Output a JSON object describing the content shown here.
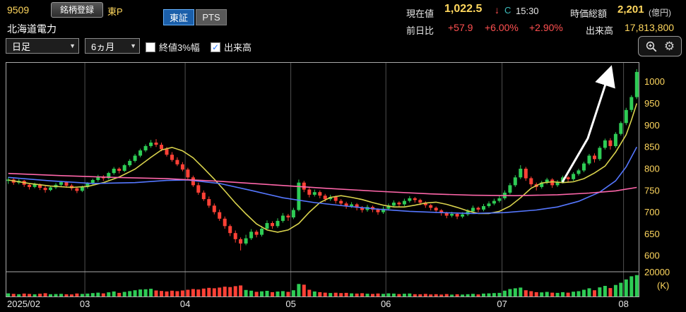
{
  "header": {
    "code": "9509",
    "register_button": "銘柄登録",
    "market_tag": "東P",
    "company": "北海道電力",
    "tabs": [
      {
        "label": "東証",
        "active": true
      },
      {
        "label": "PTS",
        "active": false
      }
    ],
    "price": {
      "label": "現在値",
      "value": "1,022.5",
      "tick": "↓",
      "flag": "C",
      "time": "15:30"
    },
    "market_cap": {
      "label": "時価総額",
      "value": "2,201",
      "unit": "(億円)"
    },
    "change": {
      "label": "前日比",
      "value": "+57.9",
      "pct": "+6.00%",
      "pct2": "+2.90%"
    },
    "volume": {
      "label": "出来高",
      "value": "17,813,800"
    }
  },
  "toolbar": {
    "period_select": "日足",
    "range_select": "6ヵ月",
    "checkbox1": {
      "label": "終値3%幅",
      "checked": false
    },
    "checkbox2": {
      "label": "出来高",
      "checked": true
    }
  },
  "chart_data": {
    "type": "candlestick",
    "title": "北海道電力 9509 日足 6ヵ月",
    "y_ticks": [
      1000,
      950,
      900,
      850,
      800,
      750,
      700,
      650,
      600
    ],
    "price_range": [
      563,
      1045
    ],
    "x_labels": [
      {
        "text": "2025/02",
        "day": 0
      },
      {
        "text": "03",
        "day": 15
      },
      {
        "text": "04",
        "day": 34
      },
      {
        "text": "05",
        "day": 54
      },
      {
        "text": "06",
        "day": 72
      },
      {
        "text": "07",
        "day": 94
      },
      {
        "text": "08",
        "day": 117
      }
    ],
    "month_grid_days": [
      15,
      34,
      54,
      72,
      94,
      117
    ],
    "volume_axis": {
      "max": 20000,
      "max_label": "20000",
      "unit": "(K)"
    },
    "colors": {
      "up": "#2ecc55",
      "down": "#ff4136",
      "grid": "#4f4f4f",
      "frame": "#aaaaaa",
      "axis_text": "#ffd75e"
    },
    "annotation": {
      "type": "arrow",
      "color": "#ffffff"
    },
    "candles": [
      [
        772,
        781,
        765,
        775,
        2600
      ],
      [
        775,
        779,
        763,
        768,
        2200
      ],
      [
        768,
        776,
        764,
        772,
        1900
      ],
      [
        772,
        774,
        758,
        763,
        2400
      ],
      [
        763,
        767,
        752,
        758,
        2100
      ],
      [
        758,
        768,
        755,
        764,
        1800
      ],
      [
        764,
        766,
        751,
        756,
        2300
      ],
      [
        756,
        760,
        745,
        751,
        2700
      ],
      [
        751,
        761,
        748,
        757,
        1900
      ],
      [
        757,
        767,
        753,
        763,
        2000
      ],
      [
        763,
        772,
        759,
        769,
        2200
      ],
      [
        769,
        771,
        756,
        761,
        1800
      ],
      [
        761,
        765,
        750,
        755,
        1700
      ],
      [
        755,
        758,
        744,
        749,
        2500
      ],
      [
        749,
        761,
        746,
        758,
        2100
      ],
      [
        758,
        769,
        754,
        766,
        2400
      ],
      [
        766,
        777,
        762,
        774,
        2800
      ],
      [
        774,
        786,
        770,
        782,
        3200
      ],
      [
        782,
        785,
        772,
        778,
        2600
      ],
      [
        778,
        793,
        775,
        790,
        3500
      ],
      [
        790,
        804,
        786,
        800,
        4200
      ],
      [
        800,
        803,
        789,
        795,
        3000
      ],
      [
        795,
        811,
        792,
        808,
        3800
      ],
      [
        808,
        822,
        804,
        818,
        4500
      ],
      [
        818,
        834,
        814,
        830,
        5200
      ],
      [
        830,
        846,
        826,
        842,
        5800
      ],
      [
        842,
        856,
        838,
        852,
        6000
      ],
      [
        852,
        866,
        848,
        860,
        6400
      ],
      [
        860,
        868,
        850,
        855,
        5000
      ],
      [
        855,
        860,
        840,
        845,
        4600
      ],
      [
        845,
        850,
        828,
        832,
        4200
      ],
      [
        832,
        838,
        816,
        820,
        4800
      ],
      [
        820,
        826,
        806,
        810,
        4400
      ],
      [
        810,
        815,
        794,
        798,
        5000
      ],
      [
        798,
        802,
        776,
        780,
        5600
      ],
      [
        780,
        784,
        758,
        762,
        6200
      ],
      [
        762,
        768,
        740,
        745,
        5800
      ],
      [
        745,
        750,
        726,
        730,
        6600
      ],
      [
        730,
        736,
        710,
        715,
        7200
      ],
      [
        715,
        720,
        695,
        700,
        6800
      ],
      [
        700,
        706,
        680,
        685,
        7400
      ],
      [
        685,
        690,
        662,
        668,
        8200
      ],
      [
        668,
        672,
        645,
        652,
        7800
      ],
      [
        652,
        658,
        630,
        638,
        8600
      ],
      [
        638,
        642,
        612,
        628,
        9200
      ],
      [
        628,
        648,
        624,
        640,
        5400
      ],
      [
        640,
        661,
        636,
        655,
        4800
      ],
      [
        655,
        659,
        642,
        648,
        3900
      ],
      [
        648,
        668,
        644,
        662,
        4300
      ],
      [
        662,
        681,
        658,
        675,
        4700
      ],
      [
        675,
        679,
        662,
        668,
        3600
      ],
      [
        668,
        686,
        664,
        680,
        4100
      ],
      [
        680,
        698,
        676,
        692,
        4500
      ],
      [
        692,
        696,
        680,
        688,
        3800
      ],
      [
        688,
        710,
        684,
        705,
        5200
      ],
      [
        705,
        775,
        702,
        768,
        10400
      ],
      [
        768,
        772,
        746,
        752,
        9800
      ],
      [
        752,
        757,
        734,
        740,
        5600
      ],
      [
        740,
        752,
        736,
        746,
        4200
      ],
      [
        746,
        750,
        732,
        738,
        3600
      ],
      [
        738,
        742,
        724,
        730,
        3200
      ],
      [
        730,
        740,
        726,
        735,
        2900
      ],
      [
        735,
        738,
        720,
        726,
        3100
      ],
      [
        726,
        730,
        714,
        720,
        2800
      ],
      [
        720,
        724,
        708,
        714,
        3000
      ],
      [
        714,
        723,
        710,
        718,
        2600
      ],
      [
        718,
        721,
        704,
        710,
        2400
      ],
      [
        710,
        714,
        699,
        705,
        2700
      ],
      [
        705,
        717,
        701,
        712,
        2300
      ],
      [
        712,
        715,
        700,
        706,
        2100
      ],
      [
        706,
        709,
        694,
        700,
        2500
      ],
      [
        700,
        713,
        696,
        708,
        2200
      ],
      [
        708,
        720,
        704,
        715,
        2600
      ],
      [
        715,
        727,
        711,
        722,
        2400
      ],
      [
        722,
        725,
        712,
        718,
        2000
      ],
      [
        718,
        731,
        714,
        726,
        2300
      ],
      [
        726,
        737,
        722,
        732,
        2500
      ],
      [
        732,
        735,
        722,
        728,
        1900
      ],
      [
        728,
        731,
        716,
        722,
        1800
      ],
      [
        722,
        725,
        710,
        716,
        2100
      ],
      [
        716,
        719,
        704,
        710,
        1700
      ],
      [
        710,
        713,
        698,
        704,
        1900
      ],
      [
        704,
        707,
        692,
        698,
        1600
      ],
      [
        698,
        701,
        686,
        692,
        2000
      ],
      [
        692,
        701,
        688,
        696,
        1500
      ],
      [
        696,
        699,
        684,
        690,
        1800
      ],
      [
        690,
        700,
        686,
        695,
        1600
      ],
      [
        695,
        707,
        691,
        702,
        1900
      ],
      [
        702,
        715,
        698,
        710,
        2200
      ],
      [
        710,
        713,
        700,
        706,
        1700
      ],
      [
        706,
        719,
        702,
        714,
        2400
      ],
      [
        714,
        725,
        710,
        720,
        2600
      ],
      [
        720,
        731,
        716,
        726,
        2800
      ],
      [
        726,
        737,
        722,
        732,
        3000
      ],
      [
        732,
        750,
        728,
        745,
        4800
      ],
      [
        745,
        767,
        741,
        762,
        6200
      ],
      [
        762,
        785,
        758,
        780,
        6800
      ],
      [
        780,
        808,
        776,
        800,
        7400
      ],
      [
        800,
        804,
        772,
        778,
        5200
      ],
      [
        778,
        782,
        758,
        764,
        4400
      ],
      [
        764,
        768,
        750,
        758,
        3600
      ],
      [
        758,
        772,
        754,
        768,
        3400
      ],
      [
        768,
        779,
        764,
        775,
        3800
      ],
      [
        775,
        778,
        756,
        762,
        3200
      ],
      [
        762,
        774,
        758,
        770,
        3000
      ],
      [
        770,
        784,
        766,
        780,
        3600
      ],
      [
        780,
        783,
        768,
        776,
        3200
      ],
      [
        776,
        792,
        772,
        788,
        4000
      ],
      [
        788,
        800,
        784,
        796,
        4400
      ],
      [
        796,
        816,
        792,
        812,
        5600
      ],
      [
        812,
        834,
        808,
        830,
        6800
      ],
      [
        830,
        835,
        814,
        822,
        5200
      ],
      [
        822,
        852,
        818,
        848,
        7600
      ],
      [
        848,
        869,
        844,
        865,
        8800
      ],
      [
        865,
        870,
        844,
        852,
        7000
      ],
      [
        852,
        884,
        848,
        880,
        9600
      ],
      [
        880,
        909,
        876,
        905,
        11400
      ],
      [
        905,
        940,
        900,
        935,
        14200
      ],
      [
        935,
        969,
        930,
        964.6,
        16800
      ],
      [
        964.6,
        1029,
        960,
        1022.5,
        17813.8
      ]
    ],
    "ma_lines": [
      {
        "name": "ma-short",
        "color": "#d9d34d",
        "points": [
          [
            0,
            774
          ],
          [
            4,
            766
          ],
          [
            8,
            760
          ],
          [
            12,
            757
          ],
          [
            15,
            759
          ],
          [
            18,
            768
          ],
          [
            21,
            781
          ],
          [
            24,
            799
          ],
          [
            27,
            826
          ],
          [
            29,
            843
          ],
          [
            31,
            849
          ],
          [
            33,
            841
          ],
          [
            35,
            825
          ],
          [
            37,
            801
          ],
          [
            39,
            776
          ],
          [
            41,
            749
          ],
          [
            43,
            721
          ],
          [
            45,
            696
          ],
          [
            47,
            673
          ],
          [
            49,
            659
          ],
          [
            51,
            654
          ],
          [
            53,
            659
          ],
          [
            55,
            674
          ],
          [
            57,
            700
          ],
          [
            59,
            722
          ],
          [
            61,
            734
          ],
          [
            63,
            738
          ],
          [
            65,
            734
          ],
          [
            67,
            729
          ],
          [
            69,
            722
          ],
          [
            71,
            716
          ],
          [
            73,
            712
          ],
          [
            75,
            712
          ],
          [
            77,
            716
          ],
          [
            79,
            721
          ],
          [
            81,
            723
          ],
          [
            83,
            718
          ],
          [
            85,
            711
          ],
          [
            87,
            703
          ],
          [
            89,
            697
          ],
          [
            91,
            697
          ],
          [
            93,
            702
          ],
          [
            95,
            714
          ],
          [
            97,
            733
          ],
          [
            99,
            755
          ],
          [
            101,
            767
          ],
          [
            103,
            770
          ],
          [
            105,
            768
          ],
          [
            107,
            770
          ],
          [
            109,
            777
          ],
          [
            111,
            790
          ],
          [
            113,
            806
          ],
          [
            115,
            838
          ],
          [
            117,
            878
          ],
          [
            118,
            912
          ],
          [
            119,
            950
          ]
        ]
      },
      {
        "name": "ma-mid",
        "color": "#5577ff",
        "points": [
          [
            0,
            780
          ],
          [
            8,
            772
          ],
          [
            16,
            766
          ],
          [
            24,
            768
          ],
          [
            30,
            773
          ],
          [
            34,
            774
          ],
          [
            40,
            766
          ],
          [
            46,
            750
          ],
          [
            52,
            733
          ],
          [
            58,
            722
          ],
          [
            64,
            714
          ],
          [
            70,
            707
          ],
          [
            76,
            702
          ],
          [
            82,
            699
          ],
          [
            88,
            697
          ],
          [
            94,
            699
          ],
          [
            100,
            705
          ],
          [
            104,
            712
          ],
          [
            108,
            725
          ],
          [
            112,
            746
          ],
          [
            115,
            772
          ],
          [
            117,
            804
          ],
          [
            119,
            850
          ]
        ]
      },
      {
        "name": "ma-long",
        "color": "#ff66aa",
        "points": [
          [
            0,
            789
          ],
          [
            10,
            784
          ],
          [
            20,
            780
          ],
          [
            30,
            777
          ],
          [
            40,
            771
          ],
          [
            50,
            763
          ],
          [
            60,
            755
          ],
          [
            70,
            748
          ],
          [
            80,
            742
          ],
          [
            88,
            739
          ],
          [
            96,
            738
          ],
          [
            104,
            740
          ],
          [
            110,
            744
          ],
          [
            115,
            749
          ],
          [
            119,
            757
          ]
        ]
      }
    ]
  }
}
